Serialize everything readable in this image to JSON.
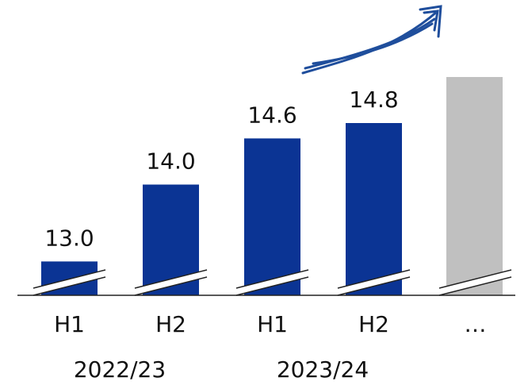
{
  "chart_data": {
    "type": "bar",
    "categories": [
      "H1",
      "H2",
      "H1",
      "H2",
      "…"
    ],
    "groups": [
      "2022/23",
      "2023/24"
    ],
    "values": [
      13.0,
      14.0,
      14.6,
      14.8,
      null
    ],
    "value_labels": [
      "13.0",
      "14.0",
      "14.6",
      "14.8",
      null
    ],
    "color": "#0b3494",
    "ylim": [
      12.56,
      16.4
    ]
  }
}
